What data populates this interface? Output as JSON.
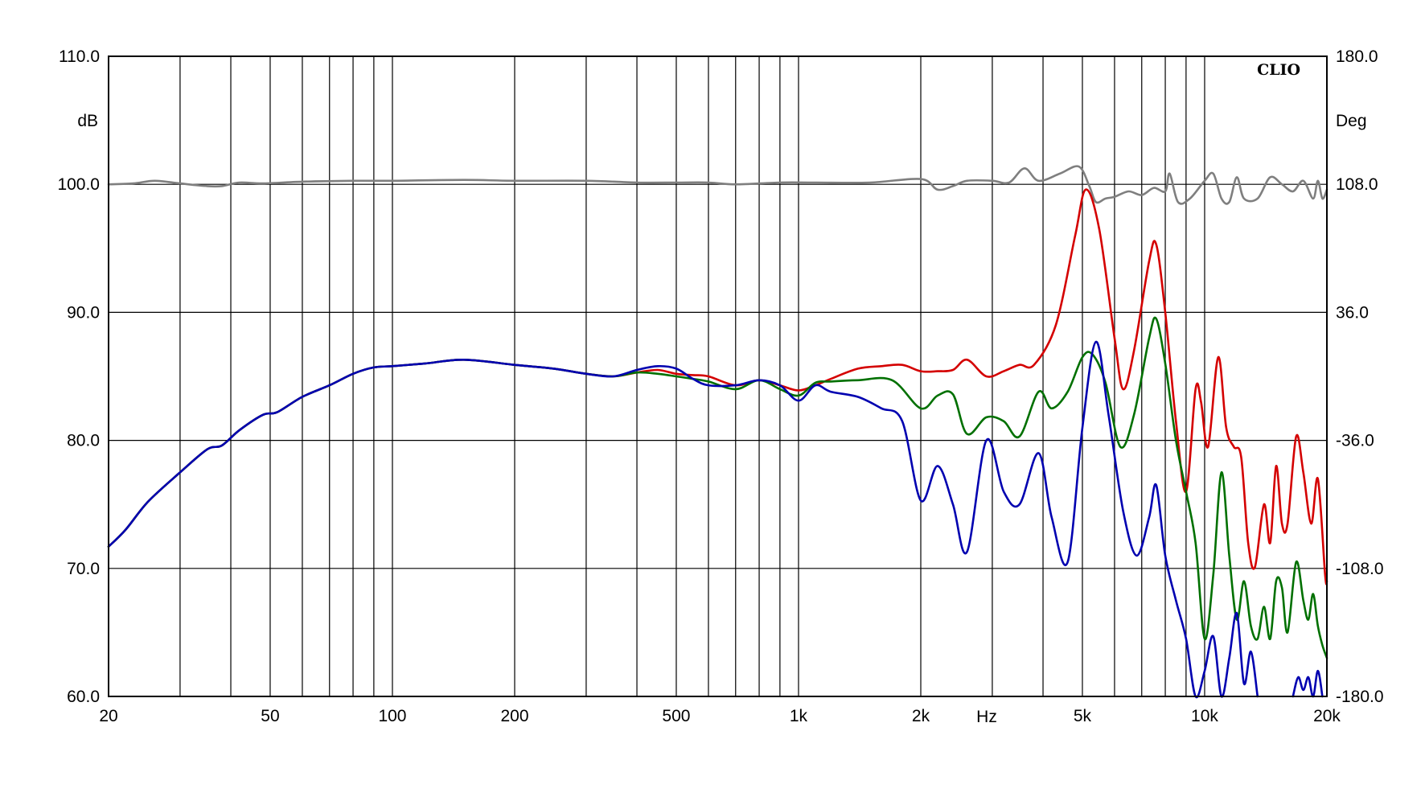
{
  "chart_data": {
    "type": "line",
    "brand": "CLIO",
    "x_unit_label": "Hz",
    "y_left_unit": "dB",
    "y_right_unit": "Deg",
    "xscale": "log",
    "xlim": [
      20,
      20000
    ],
    "ylim": [
      60,
      110
    ],
    "y2lim": [
      -180,
      180
    ],
    "grid": true,
    "x_ticks": [
      {
        "value": 20,
        "label": "20"
      },
      {
        "value": 50,
        "label": "50"
      },
      {
        "value": 100,
        "label": "100"
      },
      {
        "value": 200,
        "label": "200"
      },
      {
        "value": 500,
        "label": "500"
      },
      {
        "value": 1000,
        "label": "1k"
      },
      {
        "value": 2000,
        "label": "2k"
      },
      {
        "value": 5000,
        "label": "5k"
      },
      {
        "value": 10000,
        "label": "10k"
      },
      {
        "value": 20000,
        "label": "20k"
      }
    ],
    "x_gridlines": [
      30,
      40,
      50,
      60,
      70,
      80,
      90,
      100,
      200,
      300,
      400,
      500,
      600,
      700,
      800,
      900,
      1000,
      2000,
      3000,
      4000,
      5000,
      6000,
      7000,
      8000,
      9000,
      10000
    ],
    "y_ticks": [
      {
        "value": 110,
        "label": "110.0"
      },
      {
        "value": 100,
        "label": "100.0"
      },
      {
        "value": 90,
        "label": "90.0"
      },
      {
        "value": 80,
        "label": "80.0"
      },
      {
        "value": 70,
        "label": "70.0"
      },
      {
        "value": 60,
        "label": "60.0"
      }
    ],
    "y2_ticks": [
      {
        "value": 180,
        "label": "180.0"
      },
      {
        "value": 108,
        "label": "108.0"
      },
      {
        "value": 36,
        "label": "36.0"
      },
      {
        "value": -36,
        "label": "-36.0"
      },
      {
        "value": -108,
        "label": "-108.0"
      },
      {
        "value": -180,
        "label": "-180.0"
      }
    ],
    "series": [
      {
        "color": "#7f7f7f",
        "axis": "right",
        "points": [
          [
            20,
            108
          ],
          [
            23,
            108.5
          ],
          [
            26,
            110
          ],
          [
            30,
            108.5
          ],
          [
            35,
            107
          ],
          [
            38,
            107
          ],
          [
            42,
            109
          ],
          [
            48,
            108.5
          ],
          [
            60,
            109.5
          ],
          [
            80,
            110
          ],
          [
            100,
            110
          ],
          [
            150,
            110.5
          ],
          [
            200,
            110
          ],
          [
            300,
            110
          ],
          [
            400,
            109
          ],
          [
            500,
            109
          ],
          [
            600,
            109
          ],
          [
            700,
            108
          ],
          [
            900,
            109
          ],
          [
            1100,
            109
          ],
          [
            1500,
            109
          ],
          [
            2000,
            111
          ],
          [
            2200,
            105
          ],
          [
            2400,
            107
          ],
          [
            2600,
            110
          ],
          [
            3000,
            110
          ],
          [
            3300,
            109
          ],
          [
            3600,
            117
          ],
          [
            3900,
            110
          ],
          [
            4400,
            114
          ],
          [
            4900,
            118
          ],
          [
            5200,
            107
          ],
          [
            5400,
            98
          ],
          [
            5700,
            100
          ],
          [
            6000,
            101
          ],
          [
            6500,
            104
          ],
          [
            7000,
            102
          ],
          [
            7500,
            106
          ],
          [
            8000,
            104
          ],
          [
            8200,
            114
          ],
          [
            8600,
            98
          ],
          [
            9200,
            100
          ],
          [
            10000,
            110
          ],
          [
            10500,
            114
          ],
          [
            11000,
            100
          ],
          [
            11500,
            98
          ],
          [
            12000,
            112
          ],
          [
            12500,
            100
          ],
          [
            13500,
            100
          ],
          [
            14500,
            112
          ],
          [
            15500,
            108
          ],
          [
            16500,
            104
          ],
          [
            17500,
            110
          ],
          [
            18500,
            100
          ],
          [
            19000,
            110
          ],
          [
            19500,
            100
          ],
          [
            20000,
            105
          ]
        ]
      },
      {
        "color": "#d40000",
        "axis": "left",
        "points": [
          [
            20,
            71.7
          ],
          [
            22,
            73
          ],
          [
            25,
            75.2
          ],
          [
            30,
            77.5
          ],
          [
            35,
            79.3
          ],
          [
            38,
            79.6
          ],
          [
            42,
            80.8
          ],
          [
            48,
            82
          ],
          [
            52,
            82.2
          ],
          [
            60,
            83.4
          ],
          [
            70,
            84.3
          ],
          [
            80,
            85.2
          ],
          [
            90,
            85.7
          ],
          [
            100,
            85.8
          ],
          [
            120,
            86
          ],
          [
            150,
            86.3
          ],
          [
            200,
            85.9
          ],
          [
            250,
            85.6
          ],
          [
            300,
            85.2
          ],
          [
            350,
            85
          ],
          [
            400,
            85.3
          ],
          [
            450,
            85.5
          ],
          [
            500,
            85.2
          ],
          [
            550,
            85.1
          ],
          [
            600,
            85
          ],
          [
            700,
            84.3
          ],
          [
            800,
            84.7
          ],
          [
            900,
            84.3
          ],
          [
            1000,
            83.9
          ],
          [
            1100,
            84.3
          ],
          [
            1200,
            84.8
          ],
          [
            1400,
            85.6
          ],
          [
            1600,
            85.8
          ],
          [
            1800,
            85.9
          ],
          [
            2000,
            85.4
          ],
          [
            2200,
            85.4
          ],
          [
            2400,
            85.5
          ],
          [
            2600,
            86.3
          ],
          [
            2900,
            85
          ],
          [
            3200,
            85.4
          ],
          [
            3500,
            85.9
          ],
          [
            3800,
            85.9
          ],
          [
            4300,
            89
          ],
          [
            4800,
            96
          ],
          [
            5100,
            99.6
          ],
          [
            5500,
            96.5
          ],
          [
            6000,
            88
          ],
          [
            6300,
            84
          ],
          [
            6700,
            87
          ],
          [
            7300,
            94
          ],
          [
            7600,
            95.3
          ],
          [
            8000,
            90
          ],
          [
            8500,
            81.5
          ],
          [
            9000,
            76
          ],
          [
            9500,
            84
          ],
          [
            9800,
            83
          ],
          [
            10200,
            79.5
          ],
          [
            10800,
            86.5
          ],
          [
            11300,
            81
          ],
          [
            11800,
            79.5
          ],
          [
            12300,
            78.7
          ],
          [
            12800,
            72
          ],
          [
            13300,
            70.1
          ],
          [
            14000,
            75
          ],
          [
            14500,
            72
          ],
          [
            15000,
            78
          ],
          [
            15500,
            73.5
          ],
          [
            16000,
            73.5
          ],
          [
            16800,
            80.3
          ],
          [
            17500,
            77.5
          ],
          [
            18300,
            73.5
          ],
          [
            19000,
            77
          ],
          [
            19800,
            69.5
          ],
          [
            20000,
            69
          ]
        ]
      },
      {
        "color": "#007000",
        "axis": "left",
        "points": [
          [
            20,
            71.7
          ],
          [
            22,
            73
          ],
          [
            25,
            75.2
          ],
          [
            30,
            77.5
          ],
          [
            35,
            79.3
          ],
          [
            38,
            79.6
          ],
          [
            42,
            80.8
          ],
          [
            48,
            82
          ],
          [
            52,
            82.2
          ],
          [
            60,
            83.4
          ],
          [
            70,
            84.3
          ],
          [
            80,
            85.2
          ],
          [
            90,
            85.7
          ],
          [
            100,
            85.8
          ],
          [
            120,
            86
          ],
          [
            150,
            86.3
          ],
          [
            200,
            85.9
          ],
          [
            250,
            85.6
          ],
          [
            300,
            85.2
          ],
          [
            350,
            85
          ],
          [
            400,
            85.3
          ],
          [
            450,
            85.2
          ],
          [
            500,
            85
          ],
          [
            550,
            84.8
          ],
          [
            600,
            84.6
          ],
          [
            700,
            84
          ],
          [
            800,
            84.7
          ],
          [
            900,
            84
          ],
          [
            1000,
            83.5
          ],
          [
            1100,
            84.5
          ],
          [
            1200,
            84.6
          ],
          [
            1400,
            84.7
          ],
          [
            1700,
            84.7
          ],
          [
            2000,
            82.5
          ],
          [
            2200,
            83.5
          ],
          [
            2400,
            83.6
          ],
          [
            2600,
            80.5
          ],
          [
            2900,
            81.8
          ],
          [
            3200,
            81.5
          ],
          [
            3500,
            80.3
          ],
          [
            3900,
            83.8
          ],
          [
            4200,
            82.5
          ],
          [
            4600,
            83.8
          ],
          [
            5000,
            86.5
          ],
          [
            5300,
            86.7
          ],
          [
            5700,
            84.5
          ],
          [
            6200,
            79.5
          ],
          [
            6700,
            82
          ],
          [
            7300,
            88
          ],
          [
            7600,
            89.5
          ],
          [
            8000,
            86
          ],
          [
            8500,
            80
          ],
          [
            9000,
            76
          ],
          [
            9500,
            72
          ],
          [
            10000,
            64.5
          ],
          [
            10500,
            69.5
          ],
          [
            11000,
            77.5
          ],
          [
            11500,
            71
          ],
          [
            12000,
            66
          ],
          [
            12500,
            69
          ],
          [
            13000,
            65.5
          ],
          [
            13500,
            64.5
          ],
          [
            14000,
            67
          ],
          [
            14500,
            64.5
          ],
          [
            15000,
            69
          ],
          [
            15500,
            68.5
          ],
          [
            16000,
            65
          ],
          [
            16800,
            70.5
          ],
          [
            17500,
            67.5
          ],
          [
            18000,
            66
          ],
          [
            18500,
            68
          ],
          [
            19000,
            65.5
          ],
          [
            19500,
            64
          ],
          [
            20000,
            63
          ]
        ]
      },
      {
        "color": "#0000b0",
        "axis": "left",
        "points": [
          [
            20,
            71.7
          ],
          [
            22,
            73
          ],
          [
            25,
            75.2
          ],
          [
            30,
            77.5
          ],
          [
            35,
            79.3
          ],
          [
            38,
            79.6
          ],
          [
            42,
            80.8
          ],
          [
            48,
            82
          ],
          [
            52,
            82.2
          ],
          [
            60,
            83.4
          ],
          [
            70,
            84.3
          ],
          [
            80,
            85.2
          ],
          [
            90,
            85.7
          ],
          [
            100,
            85.8
          ],
          [
            120,
            86
          ],
          [
            150,
            86.3
          ],
          [
            200,
            85.9
          ],
          [
            250,
            85.6
          ],
          [
            300,
            85.2
          ],
          [
            350,
            85
          ],
          [
            400,
            85.5
          ],
          [
            450,
            85.8
          ],
          [
            500,
            85.6
          ],
          [
            550,
            84.8
          ],
          [
            600,
            84.3
          ],
          [
            700,
            84.3
          ],
          [
            800,
            84.7
          ],
          [
            900,
            84.3
          ],
          [
            1000,
            83.1
          ],
          [
            1100,
            84.3
          ],
          [
            1200,
            83.8
          ],
          [
            1400,
            83.4
          ],
          [
            1600,
            82.5
          ],
          [
            1800,
            81.5
          ],
          [
            2000,
            75.3
          ],
          [
            2200,
            78
          ],
          [
            2400,
            75
          ],
          [
            2600,
            71.3
          ],
          [
            2900,
            80
          ],
          [
            3200,
            76
          ],
          [
            3500,
            75
          ],
          [
            3900,
            79
          ],
          [
            4200,
            74
          ],
          [
            4600,
            70.5
          ],
          [
            5000,
            81
          ],
          [
            5400,
            87.7
          ],
          [
            5800,
            82
          ],
          [
            6300,
            74.5
          ],
          [
            6800,
            71
          ],
          [
            7300,
            74
          ],
          [
            7600,
            76.5
          ],
          [
            8000,
            71
          ],
          [
            8500,
            67.5
          ],
          [
            9000,
            64.5
          ],
          [
            9500,
            60
          ],
          [
            10000,
            62
          ],
          [
            10500,
            64.7
          ],
          [
            11000,
            60
          ],
          [
            11500,
            63
          ],
          [
            12000,
            66.5
          ],
          [
            12500,
            61
          ],
          [
            13000,
            63.5
          ],
          [
            13500,
            60
          ]
        ]
      },
      {
        "color": "#0000b0",
        "axis": "left",
        "points": [
          [
            16500,
            60
          ],
          [
            17000,
            61.5
          ],
          [
            17500,
            60.5
          ],
          [
            18000,
            61.5
          ],
          [
            18500,
            60
          ],
          [
            19000,
            62
          ],
          [
            19500,
            60
          ]
        ]
      }
    ]
  }
}
